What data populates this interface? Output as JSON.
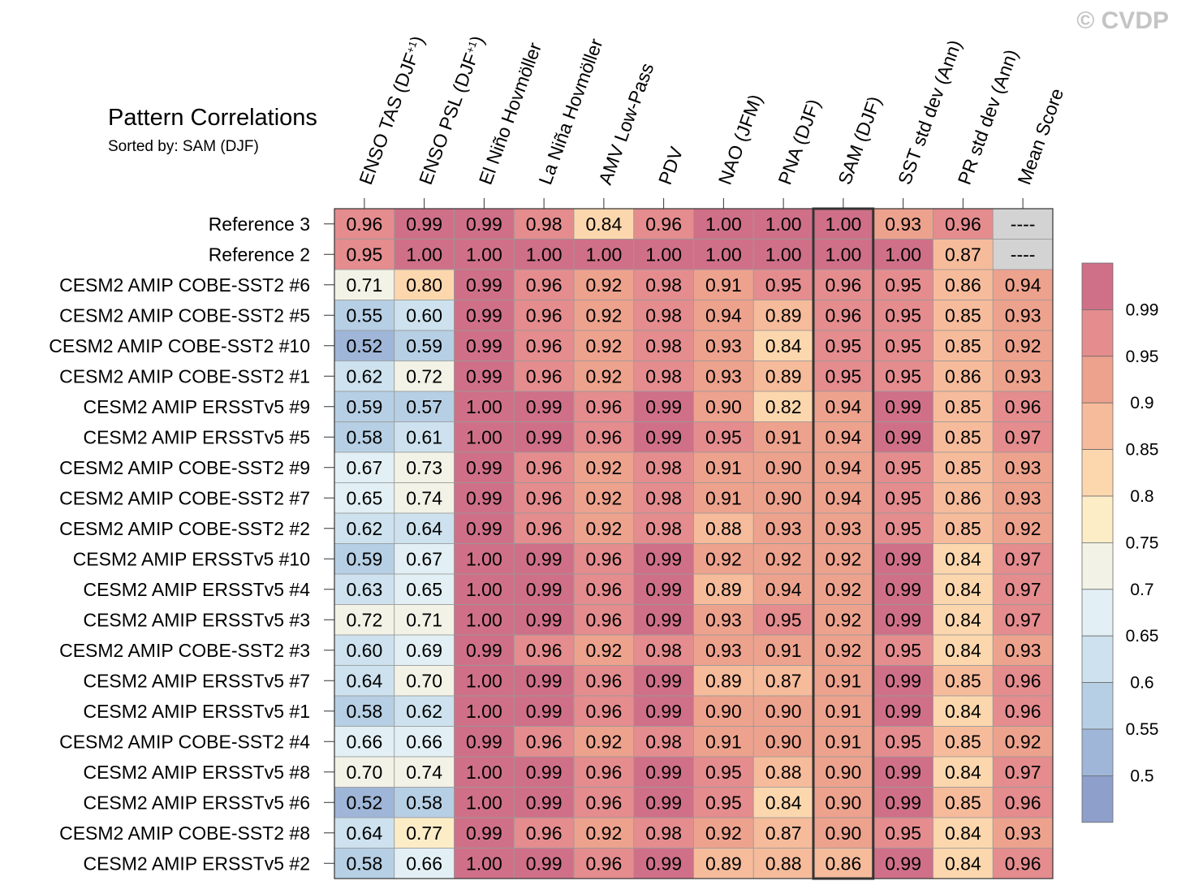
{
  "watermark": "© CVDP",
  "chart_data": {
    "type": "heatmap",
    "title": "Pattern Correlations",
    "subtitle": "Sorted by: SAM (DJF)",
    "sorted_column": "SAM (DJF)",
    "columns": [
      {
        "main": "ENSO TAS (DJF",
        "sup": "+1",
        "tail": ")"
      },
      {
        "main": "ENSO PSL (DJF",
        "sup": "+1",
        "tail": ")"
      },
      {
        "main": "El Niño Hovmöller",
        "sup": "",
        "tail": ""
      },
      {
        "main": "La Niña Hovmöller",
        "sup": "",
        "tail": ""
      },
      {
        "main": "AMV Low-Pass",
        "sup": "",
        "tail": ""
      },
      {
        "main": "PDV",
        "sup": "",
        "tail": ""
      },
      {
        "main": "NAO (JFM)",
        "sup": "",
        "tail": ""
      },
      {
        "main": "PNA (DJF)",
        "sup": "",
        "tail": ""
      },
      {
        "main": "SAM (DJF)",
        "sup": "",
        "tail": ""
      },
      {
        "main": "SST std dev (Ann)",
        "sup": "",
        "tail": ""
      },
      {
        "main": "PR std dev (Ann)",
        "sup": "",
        "tail": ""
      },
      {
        "main": "Mean Score",
        "sup": "",
        "tail": ""
      }
    ],
    "rows": [
      {
        "name": "Reference 3",
        "values": [
          "0.96",
          "0.99",
          "0.99",
          "0.98",
          "0.84",
          "0.96",
          "1.00",
          "1.00",
          "1.00",
          "0.93",
          "0.96",
          "----"
        ]
      },
      {
        "name": "Reference 2",
        "values": [
          "0.95",
          "1.00",
          "1.00",
          "1.00",
          "1.00",
          "1.00",
          "1.00",
          "1.00",
          "1.00",
          "1.00",
          "0.87",
          "----"
        ]
      },
      {
        "name": "CESM2 AMIP COBE-SST2 #6",
        "values": [
          "0.71",
          "0.80",
          "0.99",
          "0.96",
          "0.92",
          "0.98",
          "0.91",
          "0.95",
          "0.96",
          "0.95",
          "0.86",
          "0.94"
        ]
      },
      {
        "name": "CESM2 AMIP COBE-SST2 #5",
        "values": [
          "0.55",
          "0.60",
          "0.99",
          "0.96",
          "0.92",
          "0.98",
          "0.94",
          "0.89",
          "0.96",
          "0.95",
          "0.85",
          "0.93"
        ]
      },
      {
        "name": "CESM2 AMIP COBE-SST2 #10",
        "values": [
          "0.52",
          "0.59",
          "0.99",
          "0.96",
          "0.92",
          "0.98",
          "0.93",
          "0.84",
          "0.95",
          "0.95",
          "0.85",
          "0.92"
        ]
      },
      {
        "name": "CESM2 AMIP COBE-SST2 #1",
        "values": [
          "0.62",
          "0.72",
          "0.99",
          "0.96",
          "0.92",
          "0.98",
          "0.93",
          "0.89",
          "0.95",
          "0.95",
          "0.86",
          "0.93"
        ]
      },
      {
        "name": "CESM2 AMIP ERSSTv5 #9",
        "values": [
          "0.59",
          "0.57",
          "1.00",
          "0.99",
          "0.96",
          "0.99",
          "0.90",
          "0.82",
          "0.94",
          "0.99",
          "0.85",
          "0.96"
        ]
      },
      {
        "name": "CESM2 AMIP ERSSTv5 #5",
        "values": [
          "0.58",
          "0.61",
          "1.00",
          "0.99",
          "0.96",
          "0.99",
          "0.95",
          "0.91",
          "0.94",
          "0.99",
          "0.85",
          "0.97"
        ]
      },
      {
        "name": "CESM2 AMIP COBE-SST2 #9",
        "values": [
          "0.67",
          "0.73",
          "0.99",
          "0.96",
          "0.92",
          "0.98",
          "0.91",
          "0.90",
          "0.94",
          "0.95",
          "0.85",
          "0.93"
        ]
      },
      {
        "name": "CESM2 AMIP COBE-SST2 #7",
        "values": [
          "0.65",
          "0.74",
          "0.99",
          "0.96",
          "0.92",
          "0.98",
          "0.91",
          "0.90",
          "0.94",
          "0.95",
          "0.86",
          "0.93"
        ]
      },
      {
        "name": "CESM2 AMIP COBE-SST2 #2",
        "values": [
          "0.62",
          "0.64",
          "0.99",
          "0.96",
          "0.92",
          "0.98",
          "0.88",
          "0.93",
          "0.93",
          "0.95",
          "0.85",
          "0.92"
        ]
      },
      {
        "name": "CESM2 AMIP ERSSTv5 #10",
        "values": [
          "0.59",
          "0.67",
          "1.00",
          "0.99",
          "0.96",
          "0.99",
          "0.92",
          "0.92",
          "0.92",
          "0.99",
          "0.84",
          "0.97"
        ]
      },
      {
        "name": "CESM2 AMIP ERSSTv5 #4",
        "values": [
          "0.63",
          "0.65",
          "1.00",
          "0.99",
          "0.96",
          "0.99",
          "0.89",
          "0.94",
          "0.92",
          "0.99",
          "0.84",
          "0.97"
        ]
      },
      {
        "name": "CESM2 AMIP ERSSTv5 #3",
        "values": [
          "0.72",
          "0.71",
          "1.00",
          "0.99",
          "0.96",
          "0.99",
          "0.93",
          "0.95",
          "0.92",
          "0.99",
          "0.84",
          "0.97"
        ]
      },
      {
        "name": "CESM2 AMIP COBE-SST2 #3",
        "values": [
          "0.60",
          "0.69",
          "0.99",
          "0.96",
          "0.92",
          "0.98",
          "0.93",
          "0.91",
          "0.92",
          "0.95",
          "0.84",
          "0.93"
        ]
      },
      {
        "name": "CESM2 AMIP ERSSTv5 #7",
        "values": [
          "0.64",
          "0.70",
          "1.00",
          "0.99",
          "0.96",
          "0.99",
          "0.89",
          "0.87",
          "0.91",
          "0.99",
          "0.85",
          "0.96"
        ]
      },
      {
        "name": "CESM2 AMIP ERSSTv5 #1",
        "values": [
          "0.58",
          "0.62",
          "1.00",
          "0.99",
          "0.96",
          "0.99",
          "0.90",
          "0.90",
          "0.91",
          "0.99",
          "0.84",
          "0.96"
        ]
      },
      {
        "name": "CESM2 AMIP COBE-SST2 #4",
        "values": [
          "0.66",
          "0.66",
          "0.99",
          "0.96",
          "0.92",
          "0.98",
          "0.91",
          "0.90",
          "0.91",
          "0.95",
          "0.85",
          "0.92"
        ]
      },
      {
        "name": "CESM2 AMIP ERSSTv5 #8",
        "values": [
          "0.70",
          "0.74",
          "1.00",
          "0.99",
          "0.96",
          "0.99",
          "0.95",
          "0.88",
          "0.90",
          "0.99",
          "0.84",
          "0.97"
        ]
      },
      {
        "name": "CESM2 AMIP ERSSTv5 #6",
        "values": [
          "0.52",
          "0.58",
          "1.00",
          "0.99",
          "0.96",
          "0.99",
          "0.95",
          "0.84",
          "0.90",
          "0.99",
          "0.85",
          "0.96"
        ]
      },
      {
        "name": "CESM2 AMIP COBE-SST2 #8",
        "values": [
          "0.64",
          "0.77",
          "0.99",
          "0.96",
          "0.92",
          "0.98",
          "0.92",
          "0.87",
          "0.90",
          "0.95",
          "0.84",
          "0.93"
        ]
      },
      {
        "name": "CESM2 AMIP ERSSTv5 #2",
        "values": [
          "0.58",
          "0.66",
          "1.00",
          "0.99",
          "0.96",
          "0.99",
          "0.89",
          "0.88",
          "0.86",
          "0.99",
          "0.84",
          "0.96"
        ]
      }
    ],
    "colorbar": {
      "labels": [
        "0.99",
        "0.95",
        "0.9",
        "0.85",
        "0.8",
        "0.75",
        "0.7",
        "0.65",
        "0.6",
        "0.55",
        "0.5"
      ],
      "colors": [
        "#cf7088",
        "#e48c8e",
        "#eda28d",
        "#f6bb9b",
        "#fcd7ae",
        "#fdedc7",
        "#f2f2e6",
        "#e2eff4",
        "#cde2ee",
        "#b6cfe4",
        "#9fb6d8",
        "#8f9fcb"
      ],
      "missing_color": "#d3d3d3"
    }
  }
}
